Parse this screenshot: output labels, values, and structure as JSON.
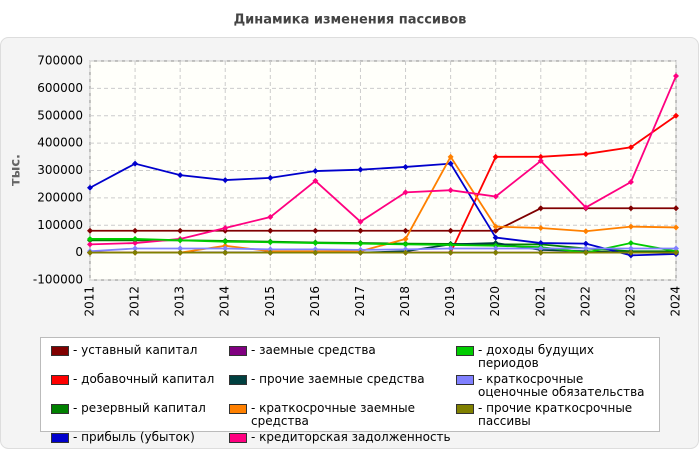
{
  "chart_data": {
    "type": "line",
    "title": "Динамика изменения пассивов",
    "y_label": "тыс.",
    "categories": [
      "2011",
      "2012",
      "2013",
      "2014",
      "2015",
      "2016",
      "2017",
      "2018",
      "2019",
      "2020",
      "2021",
      "2022",
      "2023",
      "2024"
    ],
    "ylim": [
      -100000,
      700000
    ],
    "yticks": [
      -100000,
      0,
      100000,
      200000,
      300000,
      400000,
      500000,
      600000,
      700000
    ],
    "grid": true,
    "series": [
      {
        "name": "- уставный капитал",
        "color": "#800000",
        "values": [
          80000,
          80000,
          80000,
          80000,
          80000,
          80000,
          80000,
          80000,
          80000,
          80000,
          162000,
          162000,
          162000,
          162000
        ]
      },
      {
        "name": "- добавочный капитал",
        "color": "#ff0000",
        "values": [
          0,
          0,
          0,
          0,
          0,
          0,
          0,
          0,
          0,
          350000,
          350000,
          360000,
          385000,
          500000
        ]
      },
      {
        "name": "- резервный капитал",
        "color": "#008000",
        "values": [
          45000,
          45000,
          45000,
          43000,
          40000,
          37000,
          35000,
          33000,
          32000,
          30000,
          30000,
          15000,
          5000,
          5000
        ]
      },
      {
        "name": "- прибыль (убыток)",
        "color": "#0000cc",
        "values": [
          237000,
          325000,
          283000,
          265000,
          273000,
          298000,
          303000,
          313000,
          325000,
          55000,
          35000,
          33000,
          -10000,
          -5000
        ]
      },
      {
        "name": "- заемные средства",
        "color": "#800080",
        "values": [
          0,
          0,
          0,
          0,
          0,
          0,
          0,
          0,
          0,
          0,
          0,
          0,
          0,
          0
        ]
      },
      {
        "name": "- прочие заемные средства",
        "color": "#004040",
        "values": [
          0,
          0,
          0,
          0,
          0,
          0,
          0,
          5000,
          30000,
          35000,
          10000,
          5000,
          0,
          0
        ]
      },
      {
        "name": "- краткосрочные заемные средства",
        "color": "#ff8000",
        "values": [
          0,
          0,
          0,
          25000,
          5000,
          5000,
          5000,
          50000,
          350000,
          95000,
          90000,
          78000,
          95000,
          92000
        ]
      },
      {
        "name": "- кредиторская задолженность",
        "color": "#ff0080",
        "values": [
          30000,
          35000,
          50000,
          90000,
          130000,
          262000,
          113000,
          220000,
          228000,
          205000,
          335000,
          165000,
          258000,
          645000
        ]
      },
      {
        "name": "- доходы будущих периодов",
        "color": "#00cc00",
        "values": [
          50000,
          50000,
          45000,
          40000,
          38000,
          35000,
          33000,
          30000,
          28000,
          25000,
          20000,
          0,
          35000,
          5000
        ]
      },
      {
        "name": "- краткосрочные оценочные обязательства",
        "color": "#8080ff",
        "values": [
          5000,
          15000,
          15000,
          15000,
          12000,
          12000,
          10000,
          12000,
          15000,
          15000,
          15000,
          15000,
          15000,
          15000
        ]
      },
      {
        "name": "- прочие краткосрочные пассивы",
        "color": "#808000",
        "values": [
          0,
          0,
          0,
          0,
          0,
          0,
          0,
          0,
          0,
          0,
          0,
          0,
          0,
          0
        ]
      }
    ]
  }
}
